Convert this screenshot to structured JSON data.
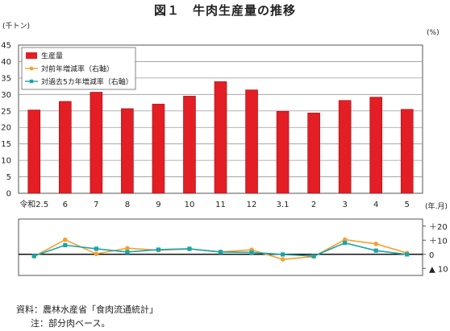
{
  "chart_data": {
    "type": "bar",
    "title": "図１　牛肉生産量の推移",
    "categories": [
      "令和2.5",
      "6",
      "7",
      "8",
      "9",
      "10",
      "11",
      "12",
      "3.1",
      "2",
      "3",
      "4",
      "5"
    ],
    "x_unit": "(年.月)",
    "left_axis": {
      "unit": "(千トン)",
      "ylim": [
        0,
        45
      ],
      "ticks": [
        0,
        5,
        10,
        15,
        20,
        25,
        30,
        35,
        40,
        45
      ]
    },
    "right_axis": {
      "unit": "(%)",
      "ylim": [
        -15,
        25
      ],
      "tick_values": [
        20,
        10,
        0,
        -10
      ],
      "tick_labels": [
        "＋20",
        "＋10",
        "0",
        "▲ 10"
      ]
    },
    "grid": true,
    "legend_position": "top-left",
    "series": [
      {
        "name": "生産量",
        "type": "bar",
        "axis": "left",
        "color": "#e31e24",
        "values": [
          25.3,
          27.9,
          30.7,
          25.7,
          27.1,
          29.5,
          33.9,
          31.4,
          24.9,
          24.4,
          28.2,
          29.2,
          25.5
        ]
      },
      {
        "name": "対前年増減率（右軸）",
        "type": "line",
        "axis": "right",
        "color": "#f5a032",
        "values": [
          -1.5,
          10.3,
          0.3,
          4.3,
          2.9,
          3.8,
          1.7,
          3.2,
          -3.6,
          -1.6,
          10.4,
          7.4,
          0.9
        ]
      },
      {
        "name": "対過去5カ年増減率（右軸）",
        "type": "line",
        "axis": "right",
        "color": "#19a5a5",
        "values": [
          -1.2,
          6.5,
          3.9,
          1.6,
          3.3,
          3.9,
          1.6,
          1.3,
          -0.1,
          -1.3,
          8.1,
          2.6,
          -0.1
        ]
      }
    ]
  },
  "footer": {
    "source": "資料：農林水産省「食肉流通統計」",
    "note": "注：部分肉ベース。"
  }
}
